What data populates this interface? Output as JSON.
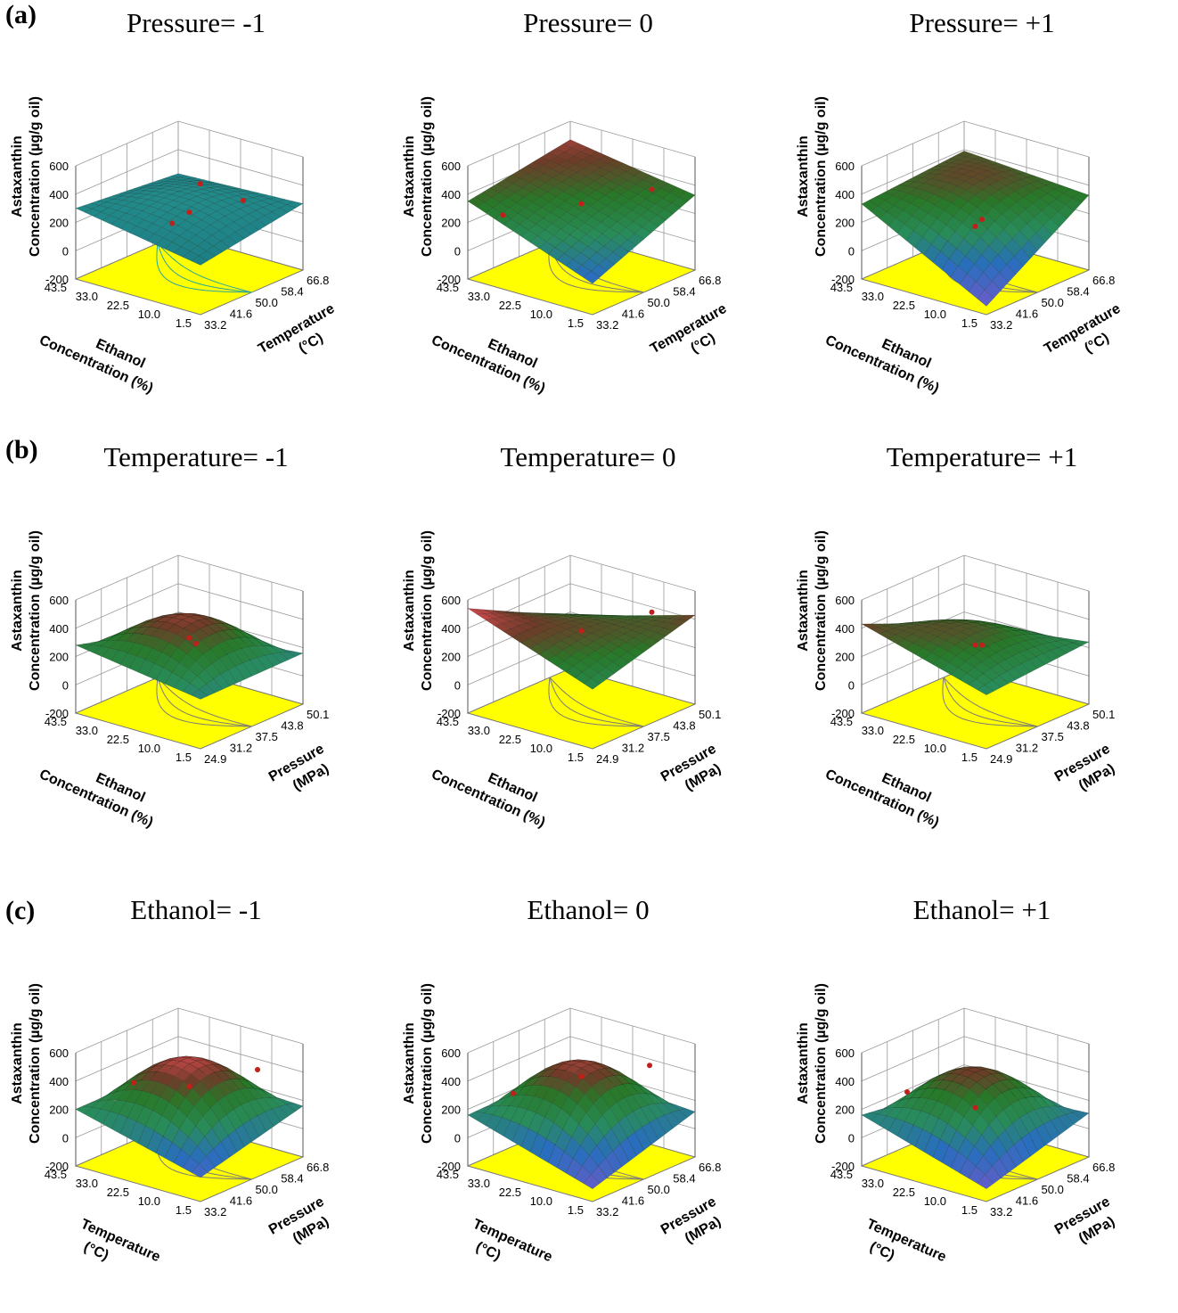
{
  "row_labels": [
    "(a)",
    "(b)",
    "(c)"
  ],
  "chart_data": [
    {
      "type": "surface",
      "row": "(a)",
      "title": "Pressure= -1",
      "zlabel_line1": "Astaxanthin",
      "zlabel_line2": "Concentration (µg/g oil)",
      "zlim": [
        -200,
        600
      ],
      "zticks": [
        "-200",
        "0",
        "200",
        "400",
        "600"
      ],
      "xlabel_line1": "Ethanol",
      "xlabel_line2": "Concentration (%)",
      "xticks": [
        "1.5",
        "10.0",
        "22.5",
        "33.0",
        "43.5"
      ],
      "ylabel_line1": "Temperature",
      "ylabel_line2": "(°C)",
      "yticks": [
        "33.2",
        "41.6",
        "50.0",
        "58.4",
        "66.8"
      ],
      "corner_values": [
        150,
        300,
        230,
        270
      ],
      "center_value": 330,
      "colormap": "teal",
      "design_points": [
        [
          0.5,
          0.5,
          240
        ],
        [
          0.15,
          0.3,
          280
        ],
        [
          0.85,
          0.65,
          310
        ],
        [
          0.4,
          0.85,
          380
        ]
      ]
    },
    {
      "type": "surface",
      "row": "(a)",
      "title": "Pressure= 0",
      "zlabel_line1": "Astaxanthin",
      "zlabel_line2": "Concentration (µg/g oil)",
      "zlim": [
        -200,
        600
      ],
      "zticks": [
        "-200",
        "0",
        "200",
        "400",
        "600"
      ],
      "xlabel_line1": "Ethanol",
      "xlabel_line2": "Concentration (%)",
      "xticks": [
        "1.5",
        "10.0",
        "22.5",
        "33.0",
        "43.5"
      ],
      "ylabel_line1": "Temperature",
      "ylabel_line2": "(°C)",
      "yticks": [
        "33.2",
        "41.6",
        "50.0",
        "58.4",
        "66.8"
      ],
      "corner_values": [
        20,
        350,
        470,
        330
      ],
      "center_value": 320,
      "colormap": "jet",
      "design_points": [
        [
          0.5,
          0.5,
          300
        ],
        [
          0.9,
          0.2,
          270
        ],
        [
          0.3,
          0.9,
          440
        ]
      ]
    },
    {
      "type": "surface",
      "row": "(a)",
      "title": "Pressure= +1",
      "zlabel_line1": "Astaxanthin",
      "zlabel_line2": "Concentration (µg/g oil)",
      "zlim": [
        -200,
        600
      ],
      "zticks": [
        "-200",
        "0",
        "200",
        "400",
        "600"
      ],
      "xlabel_line1": "Ethanol",
      "xlabel_line2": "Concentration (%)",
      "xticks": [
        "1.5",
        "10.0",
        "22.5",
        "33.0",
        "43.5"
      ],
      "ylabel_line1": "Temperature",
      "ylabel_line2": "(°C)",
      "yticks": [
        "33.2",
        "41.6",
        "50.0",
        "58.4",
        "66.8"
      ],
      "corner_values": [
        -140,
        330,
        390,
        330
      ],
      "center_value": 360,
      "colormap": "jet",
      "design_points": [
        [
          0.5,
          0.5,
          140
        ],
        [
          0.8,
          0.8,
          360
        ]
      ]
    },
    {
      "type": "surface",
      "row": "(b)",
      "title": "Temperature= -1",
      "zlabel_line1": "Astaxanthin",
      "zlabel_line2": "Concentration (µg/g oil)",
      "zlim": [
        -200,
        600
      ],
      "zticks": [
        "-200",
        "0",
        "200",
        "400",
        "600"
      ],
      "xlabel_line1": "Ethanol",
      "xlabel_line2": "Concentration (%)",
      "xticks": [
        "1.5",
        "10.0",
        "22.5",
        "33.0",
        "43.5"
      ],
      "ylabel_line1": "Pressure",
      "ylabel_line2": "(MPa)",
      "yticks": [
        "24.9",
        "31.2",
        "37.5",
        "43.8",
        "50.1"
      ],
      "corner_values": [
        150,
        280,
        80,
        160
      ],
      "center_value": 450,
      "colormap": "jet",
      "design_points": [
        [
          0.5,
          0.5,
          300
        ],
        [
          0.8,
          0.8,
          430
        ]
      ]
    },
    {
      "type": "surface",
      "row": "(b)",
      "title": "Temperature= 0",
      "zlabel_line1": "Astaxanthin",
      "zlabel_line2": "Concentration (µg/g oil)",
      "zlim": [
        -200,
        600
      ],
      "zticks": [
        "-200",
        "0",
        "200",
        "400",
        "600"
      ],
      "xlabel_line1": "Ethanol",
      "xlabel_line2": "Concentration (%)",
      "xticks": [
        "1.5",
        "10.0",
        "22.5",
        "33.0",
        "43.5"
      ],
      "ylabel_line1": "Pressure",
      "ylabel_line2": "(MPa)",
      "yticks": [
        "24.9",
        "31.2",
        "37.5",
        "43.8",
        "50.1"
      ],
      "corner_values": [
        220,
        540,
        170,
        430
      ],
      "center_value": 400,
      "colormap": "jet",
      "design_points": [
        [
          0.5,
          0.5,
          350
        ],
        [
          0.3,
          0.9,
          520
        ]
      ]
    },
    {
      "type": "surface",
      "row": "(b)",
      "title": "Temperature= +1",
      "zlabel_line1": "Astaxanthin",
      "zlabel_line2": "Concentration (µg/g oil)",
      "zlim": [
        -200,
        600
      ],
      "zticks": [
        "-200",
        "0",
        "200",
        "400",
        "600"
      ],
      "xlabel_line1": "Ethanol",
      "xlabel_line2": "Concentration (%)",
      "xticks": [
        "1.5",
        "10.0",
        "22.5",
        "33.0",
        "43.5"
      ],
      "ylabel_line1": "Pressure",
      "ylabel_line2": "(MPa)",
      "yticks": [
        "24.9",
        "31.2",
        "37.5",
        "43.8",
        "50.1"
      ],
      "corner_values": [
        180,
        430,
        120,
        240
      ],
      "center_value": 380,
      "colormap": "jet",
      "design_points": [
        [
          0.5,
          0.5,
          250
        ],
        [
          0.8,
          0.8,
          420
        ]
      ]
    },
    {
      "type": "surface",
      "row": "(c)",
      "title": "Ethanol= -1",
      "zlabel_line1": "Astaxanthin",
      "zlabel_line2": "Concentration (µg/g oil)",
      "zlim": [
        -200,
        600
      ],
      "zticks": [
        "-200",
        "0",
        "200",
        "400",
        "600"
      ],
      "xlabel_line1": "Temperature",
      "xlabel_line2": "(°C)",
      "xticks": [
        "1.5",
        "10.0",
        "22.5",
        "33.0",
        "43.5"
      ],
      "ylabel_line1": "Pressure",
      "ylabel_line2": "(MPa)",
      "yticks": [
        "33.2",
        "41.6",
        "50.0",
        "58.4",
        "66.8"
      ],
      "corner_values": [
        -30,
        200,
        200,
        160
      ],
      "center_value": 490,
      "colormap": "jet",
      "design_points": [
        [
          0.5,
          0.5,
          330
        ],
        [
          0.2,
          0.8,
          430
        ],
        [
          0.8,
          0.3,
          400
        ]
      ]
    },
    {
      "type": "surface",
      "row": "(c)",
      "title": "Ethanol= 0",
      "zlabel_line1": "Astaxanthin",
      "zlabel_line2": "Concentration (µg/g oil)",
      "zlim": [
        -200,
        600
      ],
      "zticks": [
        "-200",
        "0",
        "200",
        "400",
        "600"
      ],
      "xlabel_line1": "Temperature",
      "xlabel_line2": "(°C)",
      "xticks": [
        "1.5",
        "10.0",
        "22.5",
        "33.0",
        "43.5"
      ],
      "ylabel_line1": "Pressure",
      "ylabel_line2": "(MPa)",
      "yticks": [
        "33.2",
        "41.6",
        "50.0",
        "58.4",
        "66.8"
      ],
      "corner_values": [
        -110,
        160,
        180,
        120
      ],
      "center_value": 460,
      "colormap": "jet",
      "design_points": [
        [
          0.5,
          0.5,
          400
        ],
        [
          0.2,
          0.8,
          460
        ],
        [
          0.8,
          0.2,
          300
        ]
      ]
    },
    {
      "type": "surface",
      "row": "(c)",
      "title": "Ethanol= +1",
      "zlabel_line1": "Astaxanthin",
      "zlabel_line2": "Concentration (µg/g oil)",
      "zlim": [
        -200,
        600
      ],
      "zticks": [
        "-200",
        "0",
        "200",
        "400",
        "600"
      ],
      "xlabel_line1": "Temperature",
      "xlabel_line2": "(°C)",
      "xticks": [
        "1.5",
        "10.0",
        "22.5",
        "33.0",
        "43.5"
      ],
      "ylabel_line1": "Pressure",
      "ylabel_line2": "(MPa)",
      "yticks": [
        "33.2",
        "41.6",
        "50.0",
        "58.4",
        "66.8"
      ],
      "corner_values": [
        -110,
        160,
        60,
        110
      ],
      "center_value": 430,
      "colormap": "jet",
      "design_points": [
        [
          0.5,
          0.5,
          180
        ],
        [
          0.8,
          0.2,
          310
        ]
      ]
    }
  ]
}
